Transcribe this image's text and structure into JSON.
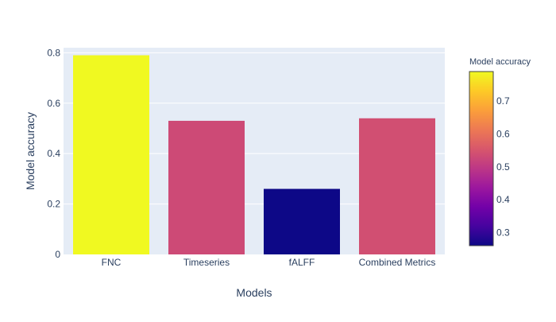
{
  "chart_data": {
    "type": "bar",
    "title": "",
    "xlabel": "Models",
    "ylabel": "Model accuracy",
    "categories": [
      "FNC",
      "Timeseries",
      "fALFF",
      "Combined Metrics"
    ],
    "values": [
      0.79,
      0.53,
      0.26,
      0.54
    ],
    "ylim": [
      0,
      0.82
    ],
    "yticks": [
      0,
      0.2,
      0.4,
      0.6,
      0.8
    ],
    "ytick_labels": [
      "0",
      "0.2",
      "0.4",
      "0.6",
      "0.8"
    ],
    "grid": true,
    "colorbar": {
      "title": "Model accuracy",
      "range": [
        0.26,
        0.79
      ],
      "ticks": [
        0.3,
        0.4,
        0.5,
        0.6,
        0.7
      ],
      "tick_labels": [
        "0.3",
        "0.4",
        "0.5",
        "0.6",
        "0.7"
      ],
      "colorscale": "plasma",
      "placement": "right"
    },
    "colors": {
      "plot_background": "#e5ecf6",
      "gridline": "#ffffff",
      "text": "#2a3f5f"
    }
  }
}
